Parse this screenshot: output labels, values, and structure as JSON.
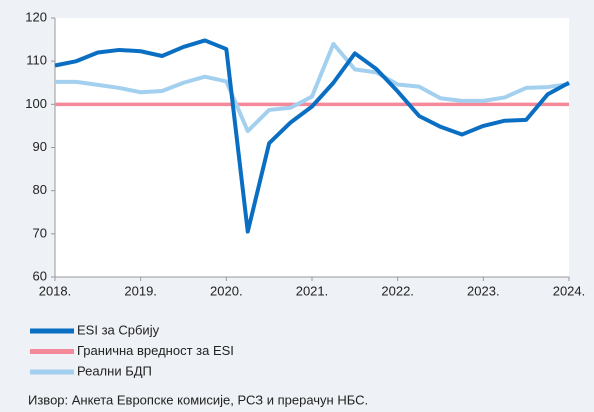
{
  "chart_data": {
    "type": "line",
    "categories": [
      "2018.",
      null,
      null,
      null,
      "2019.",
      null,
      null,
      null,
      "2020.",
      null,
      null,
      null,
      "2021.",
      null,
      null,
      null,
      "2022.",
      null,
      null,
      null,
      "2023.",
      null,
      null,
      null,
      "2024."
    ],
    "series": [
      {
        "name": "ESI за Србију",
        "color": "#0a6fc2",
        "values": [
          109,
          110,
          112,
          112.6,
          112.3,
          111.2,
          113.3,
          114.8,
          112.8,
          70.5,
          91,
          95.8,
          99.5,
          105,
          111.8,
          108.2,
          103,
          97.3,
          94.8,
          93,
          95,
          96.2,
          96.4,
          102.3,
          105
        ]
      },
      {
        "name": "Гранична вредност за ESI",
        "color": "#f4899a",
        "values": [
          100,
          100,
          100,
          100,
          100,
          100,
          100,
          100,
          100,
          100,
          100,
          100,
          100,
          100,
          100,
          100,
          100,
          100,
          100,
          100,
          100,
          100,
          100,
          100,
          100
        ]
      },
      {
        "name": "Реални БДП",
        "color": "#a3d0ef",
        "values": [
          105.2,
          105.2,
          104.5,
          103.8,
          102.8,
          103.1,
          105,
          106.4,
          105.3,
          93.8,
          98.7,
          99.2,
          101.8,
          114,
          108.1,
          107.4,
          104.6,
          104.1,
          101.4,
          100.8,
          100.8,
          101.6,
          103.8,
          104,
          104.7
        ]
      }
    ],
    "ylim": [
      60,
      120
    ],
    "yticks": [
      60,
      70,
      80,
      90,
      100,
      110,
      120
    ],
    "grid": false,
    "source": "Извор: Анкета Европске комисије, РСЗ и прерачун НБС."
  }
}
